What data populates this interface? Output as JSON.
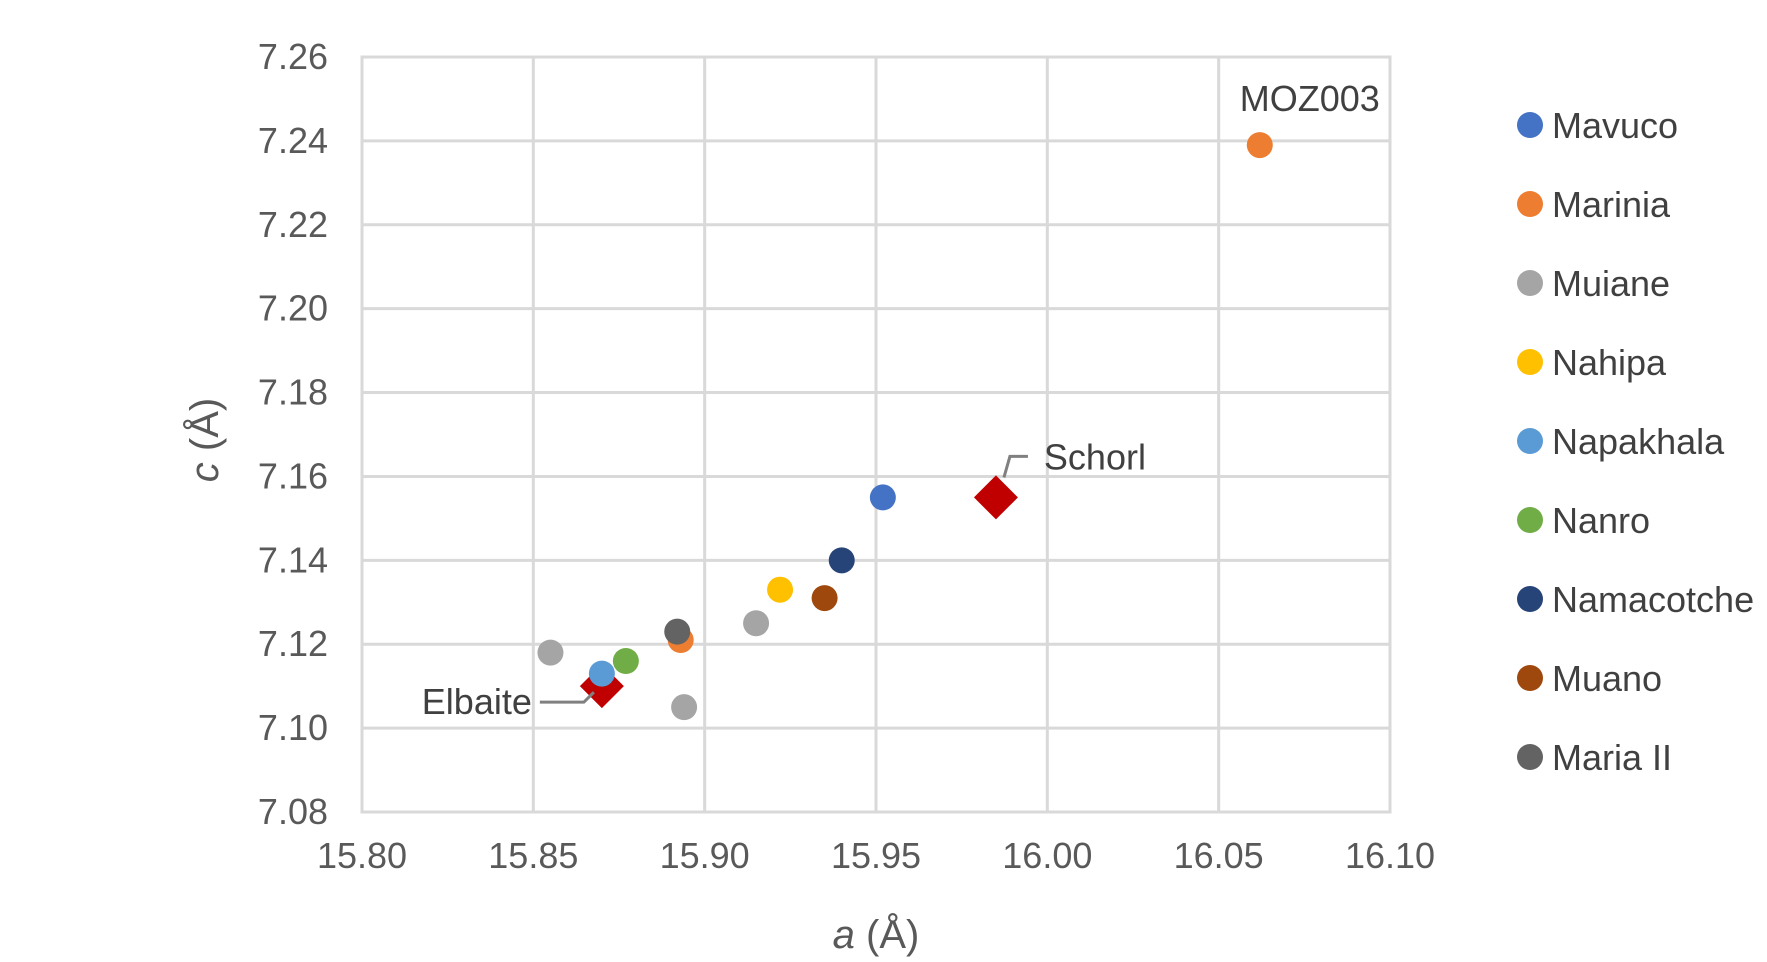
{
  "chart_data": {
    "type": "scatter",
    "title": "",
    "xlabel": "a (Å)",
    "ylabel": "c (Å)",
    "xlabel_parts": {
      "symbol": "a",
      "unit": " (Å)"
    },
    "ylabel_parts": {
      "symbol": "c",
      "unit": " (Å)"
    },
    "xlim": [
      15.8,
      16.1
    ],
    "ylim": [
      7.08,
      7.26
    ],
    "xticks": [
      "15.80",
      "15.85",
      "15.90",
      "15.95",
      "16.00",
      "16.05",
      "16.10"
    ],
    "yticks": [
      "7.08",
      "7.10",
      "7.12",
      "7.14",
      "7.16",
      "7.18",
      "7.20",
      "7.22",
      "7.24",
      "7.26"
    ],
    "grid": true,
    "legend_position": "right",
    "series": [
      {
        "name": "Mavuco",
        "color": "#4472C4",
        "marker": "circle",
        "points": [
          [
            15.952,
            7.155
          ]
        ]
      },
      {
        "name": "Marinia",
        "color": "#ED7D31",
        "marker": "circle",
        "points": [
          [
            16.062,
            7.239
          ],
          [
            15.893,
            7.121
          ]
        ]
      },
      {
        "name": "Muiane",
        "color": "#A5A5A5",
        "marker": "circle",
        "points": [
          [
            15.855,
            7.118
          ],
          [
            15.915,
            7.125
          ],
          [
            15.894,
            7.105
          ]
        ]
      },
      {
        "name": "Nahipa",
        "color": "#FFC000",
        "marker": "circle",
        "points": [
          [
            15.922,
            7.133
          ]
        ]
      },
      {
        "name": "Napakhala",
        "color": "#5B9BD5",
        "marker": "circle",
        "points": [
          [
            15.87,
            7.113
          ]
        ]
      },
      {
        "name": "Nanro",
        "color": "#70AD47",
        "marker": "circle",
        "points": [
          [
            15.877,
            7.116
          ]
        ]
      },
      {
        "name": "Namacotche",
        "color": "#264478",
        "marker": "circle",
        "points": [
          [
            15.94,
            7.14
          ]
        ]
      },
      {
        "name": "Muano",
        "color": "#9E480E",
        "marker": "circle",
        "points": [
          [
            15.935,
            7.131
          ]
        ]
      },
      {
        "name": "Maria II",
        "color": "#636363",
        "marker": "circle",
        "points": [
          [
            15.892,
            7.123
          ]
        ]
      }
    ],
    "reference_points": [
      {
        "label": "Elbaite",
        "x": 15.87,
        "y": 7.11,
        "color": "#C00000",
        "marker": "diamond"
      },
      {
        "label": "Schorl",
        "x": 15.985,
        "y": 7.155,
        "color": "#C00000",
        "marker": "diamond"
      }
    ],
    "annotations": [
      {
        "text": "MOZ003",
        "x": 16.062,
        "y": 7.239
      }
    ]
  }
}
